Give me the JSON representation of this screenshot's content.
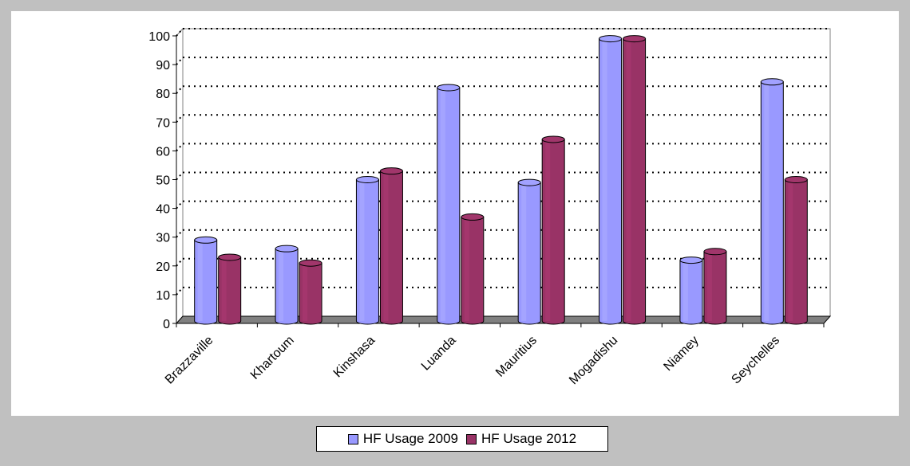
{
  "chart_data": {
    "type": "bar",
    "categories": [
      "Brazzaville",
      "Khartoum",
      "Kinshasa",
      "Luanda",
      "Mauritius",
      "Mogadishu",
      "Niamey",
      "Seychelles"
    ],
    "series": [
      {
        "name": "HF Usage 2009",
        "color": "#9999ff",
        "values": [
          29,
          26,
          50,
          82,
          49,
          99,
          22,
          84
        ]
      },
      {
        "name": "HF Usage 2012",
        "color": "#993366",
        "values": [
          23,
          21,
          53,
          37,
          64,
          99,
          25,
          50
        ]
      }
    ],
    "ylim": [
      0,
      100
    ],
    "yticks": [
      0,
      10,
      20,
      30,
      40,
      50,
      60,
      70,
      80,
      90,
      100
    ],
    "grid": true,
    "legend_position": "bottom",
    "style": "3d-cylinder",
    "title": "",
    "xlabel": "",
    "ylabel": ""
  }
}
